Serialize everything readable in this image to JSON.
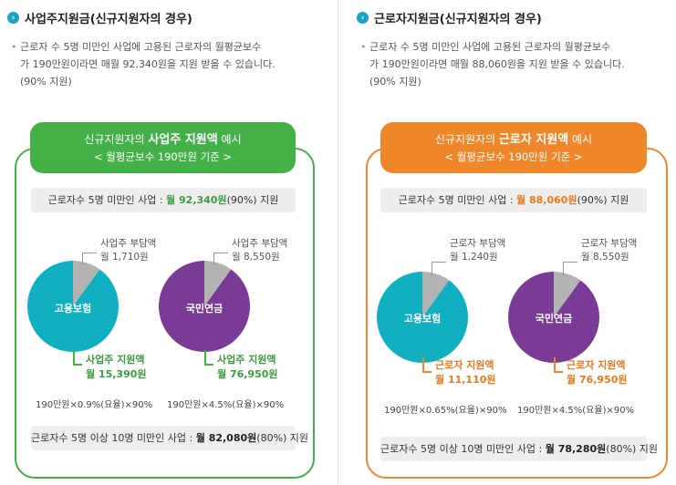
{
  "colors": {
    "green": "#43b048",
    "orange": "#f0862a",
    "teal": "#10b0c2",
    "purple": "#7a3b96",
    "gray_slice": "#b3b3b3",
    "bullet": "#1aa3c4"
  },
  "left": {
    "title": "사업주지원금(신규지원자의 경우)",
    "desc_line1": "근로자 수 5명 미만인 사업에 고용된 근로자의 월평균보수",
    "desc_line2": "가 190만원이라면 매월 92,340원을 지원 받을 수 있습니다.",
    "desc_line3": "(90% 지원)",
    "header_pre": "신규지원자의 ",
    "header_bold": "사업주 지원액",
    "header_post": " 예시",
    "header_line2": "< 월평균보수 190만원 기준 >",
    "info_top_pre": "근로자수 5명 미만인 사업 : ",
    "info_top_hl": "월 92,340원",
    "info_top_post": "(90%) 지원",
    "pie1": {
      "label": "고용보험",
      "share_line1": "사업주 부담액",
      "share_line2": "월 1,710원",
      "support_line1": "사업주 지원액",
      "support_line2": "월 15,390원",
      "formula": "190만원×0.9%(요율)×90%",
      "share_fraction": 0.1
    },
    "pie2": {
      "label": "국민연금",
      "share_line1": "사업주 부담액",
      "share_line2": "월 8,550원",
      "support_line1": "사업주 지원액",
      "support_line2": "월 76,950원",
      "formula": "190만원×4.5%(요율)×90%",
      "share_fraction": 0.1
    },
    "info_bottom_pre": "근로자수 5명 이상 10명 미만인 사업 : ",
    "info_bottom_hl": "월 82,080원",
    "info_bottom_post": "(80%) 지원"
  },
  "right": {
    "title": "근로자지원금(신규지원자의 경우)",
    "desc_line1": "근로자 수 5명 미만인 사업에 고용된 근로자의 월평균보수",
    "desc_line2": "가 190만원이라면 매월 88,060원을 지원 받을 수 있습니다.",
    "desc_line3": "(90% 지원)",
    "header_pre": "신규지원자의 ",
    "header_bold": "근로자 지원액",
    "header_post": " 예시",
    "header_line2": "< 월평균보수 190만원 기준 >",
    "info_top_pre": "근로자수 5명 미만인 사업 : ",
    "info_top_hl": "월 88,060원",
    "info_top_post": "(90%) 지원",
    "pie1": {
      "label": "고용보험",
      "share_line1": "근로자 부담액",
      "share_line2": "월 1,240원",
      "support_line1": "근로자 지원액",
      "support_line2": "월 11,110원",
      "formula": "190만원×0.65%(요율)×90%",
      "share_fraction": 0.1
    },
    "pie2": {
      "label": "국민연금",
      "share_line1": "근로자 부담액",
      "share_line2": "월 8,550원",
      "support_line1": "근로자 지원액",
      "support_line2": "월 76,950원",
      "formula": "190만원×4.5%(요율)×90%",
      "share_fraction": 0.1
    },
    "info_bottom_pre": "근로자수 5명 이상 10명 미만인 사업 : ",
    "info_bottom_hl": "월 78,280원",
    "info_bottom_post": "(80%) 지원"
  }
}
